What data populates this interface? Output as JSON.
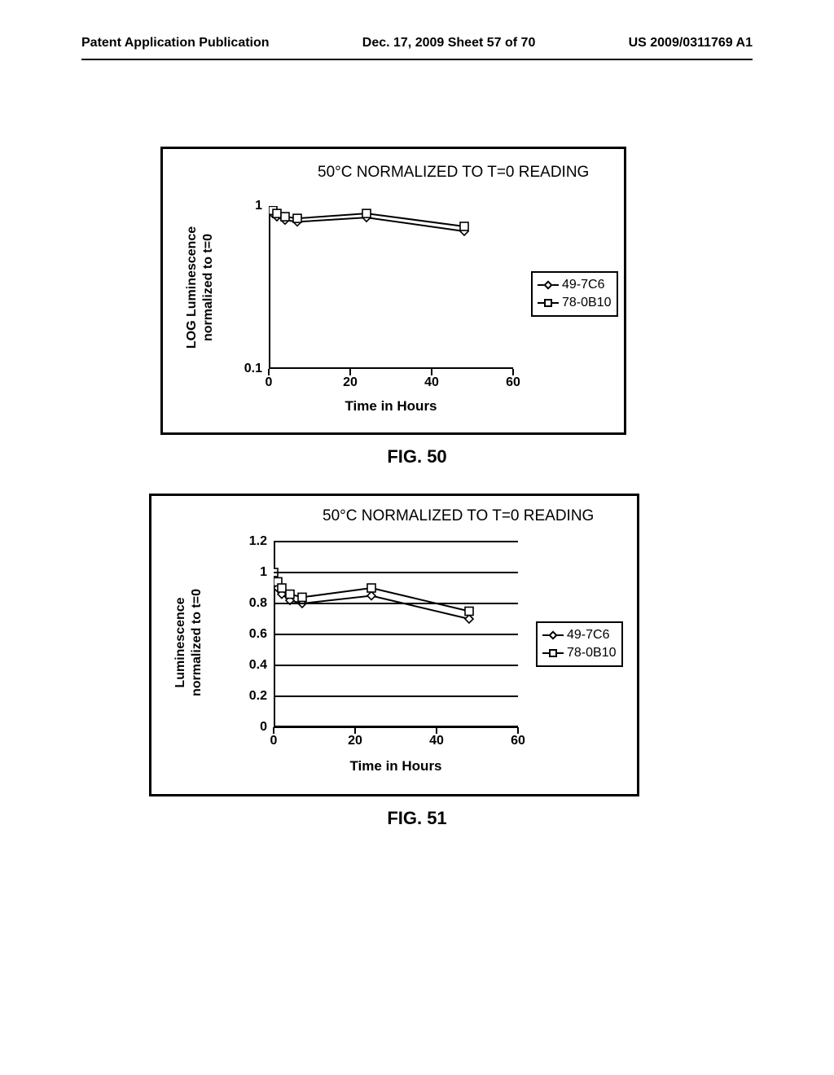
{
  "header": {
    "left": "Patent Application Publication",
    "center": "Dec. 17, 2009  Sheet 57 of 70",
    "right": "US 2009/0311769 A1"
  },
  "fig50": {
    "caption": "FIG.  50",
    "title": "50°C NORMALIZED TO T=0 READING",
    "xlabel": "Time in Hours",
    "ylabel_line1": "LOG Luminescence",
    "ylabel_line2": "normalized to t=0",
    "type": "line",
    "yscale": "log",
    "ylim": [
      0.1,
      1
    ],
    "xlim": [
      0,
      60
    ],
    "xticks": [
      0,
      20,
      40,
      60
    ],
    "yticks": [
      0.1,
      1
    ],
    "series": [
      {
        "name": "49-7C6",
        "marker": "diamond",
        "color": "#000000",
        "points": [
          {
            "x": 0,
            "y": 0.99
          },
          {
            "x": 1,
            "y": 0.9
          },
          {
            "x": 2,
            "y": 0.86
          },
          {
            "x": 4,
            "y": 0.82
          },
          {
            "x": 7,
            "y": 0.8
          },
          {
            "x": 24,
            "y": 0.85
          },
          {
            "x": 48,
            "y": 0.7
          }
        ]
      },
      {
        "name": "78-0B10",
        "marker": "square",
        "color": "#000000",
        "points": [
          {
            "x": 0,
            "y": 1.0
          },
          {
            "x": 1,
            "y": 0.94
          },
          {
            "x": 2,
            "y": 0.9
          },
          {
            "x": 4,
            "y": 0.86
          },
          {
            "x": 7,
            "y": 0.84
          },
          {
            "x": 24,
            "y": 0.9
          },
          {
            "x": 48,
            "y": 0.75
          }
        ]
      }
    ],
    "legend": [
      {
        "label": "49-7C6",
        "marker": "diamond"
      },
      {
        "label": "78-0B10",
        "marker": "square"
      }
    ],
    "style": {
      "line_width": 2,
      "marker_size": 10,
      "background_color": "#ffffff",
      "border_color": "#000000",
      "font_family": "Arial"
    }
  },
  "fig51": {
    "caption": "FIG.  51",
    "title": "50°C NORMALIZED TO T=0 READING",
    "xlabel": "Time in Hours",
    "ylabel_line1": "Luminescence",
    "ylabel_line2": "normalized to t=0",
    "type": "line",
    "yscale": "linear",
    "ylim": [
      0,
      1.2
    ],
    "xlim": [
      0,
      60
    ],
    "xticks": [
      0,
      20,
      40,
      60
    ],
    "yticks": [
      0,
      0.2,
      0.4,
      0.6,
      0.8,
      1,
      1.2
    ],
    "series": [
      {
        "name": "49-7C6",
        "marker": "diamond",
        "color": "#000000",
        "points": [
          {
            "x": 0,
            "y": 0.99
          },
          {
            "x": 1,
            "y": 0.9
          },
          {
            "x": 2,
            "y": 0.86
          },
          {
            "x": 4,
            "y": 0.82
          },
          {
            "x": 7,
            "y": 0.8
          },
          {
            "x": 24,
            "y": 0.85
          },
          {
            "x": 48,
            "y": 0.7
          }
        ]
      },
      {
        "name": "78-0B10",
        "marker": "square",
        "color": "#000000",
        "points": [
          {
            "x": 0,
            "y": 1.0
          },
          {
            "x": 1,
            "y": 0.94
          },
          {
            "x": 2,
            "y": 0.9
          },
          {
            "x": 4,
            "y": 0.86
          },
          {
            "x": 7,
            "y": 0.84
          },
          {
            "x": 24,
            "y": 0.9
          },
          {
            "x": 48,
            "y": 0.75
          }
        ]
      }
    ],
    "legend": [
      {
        "label": "49-7C6",
        "marker": "diamond"
      },
      {
        "label": "78-0B10",
        "marker": "square"
      }
    ],
    "style": {
      "line_width": 2,
      "marker_size": 10,
      "background_color": "#ffffff",
      "border_color": "#000000",
      "font_family": "Arial"
    }
  }
}
